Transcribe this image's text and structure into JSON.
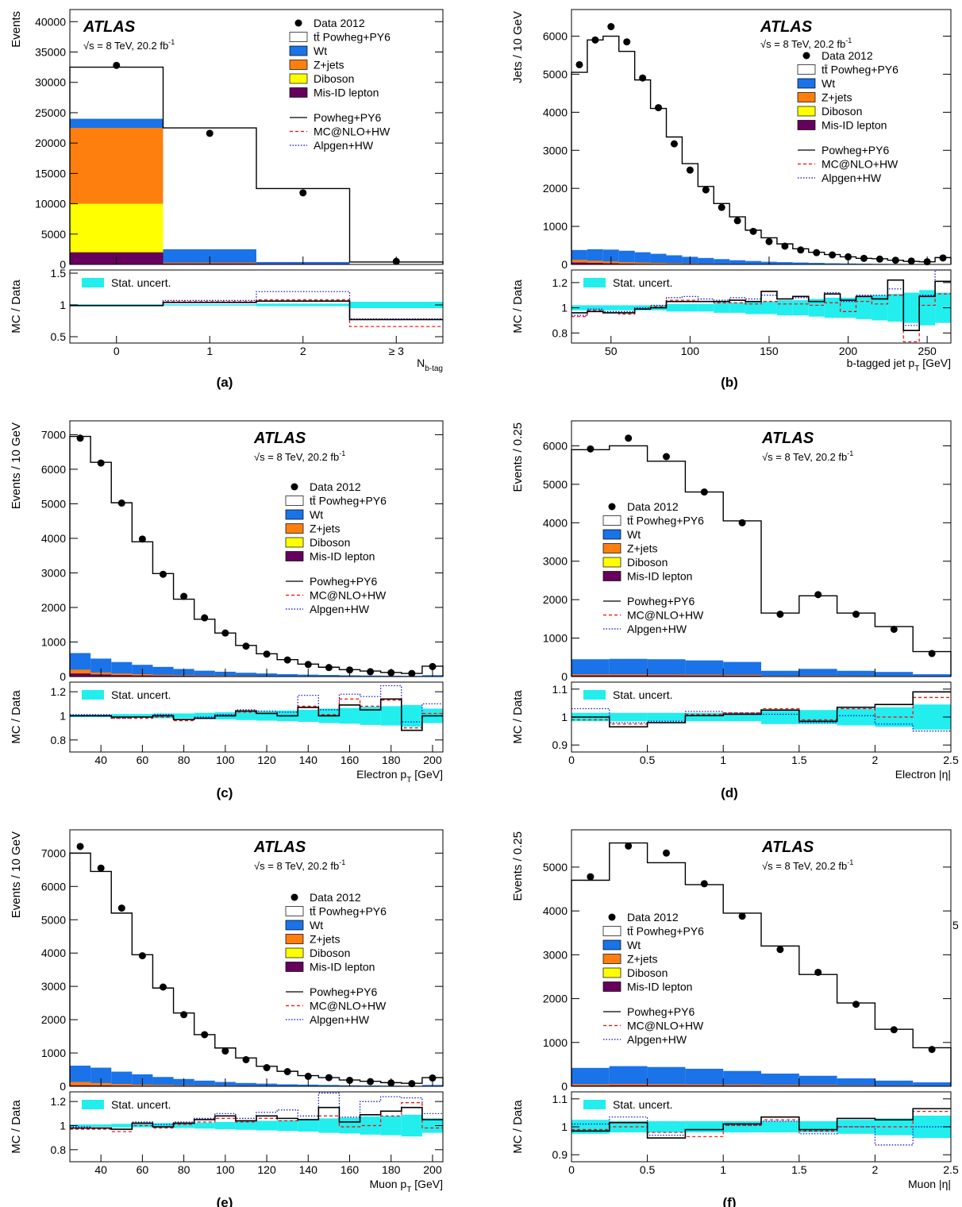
{
  "figure": {
    "page_number": "5",
    "common": {
      "atlas_label": "ATLAS",
      "energy_label_prefix": "√s = 8 TeV, 20.2 fb",
      "energy_label_sup": "-1",
      "ratio_ylabel": "MC / Data",
      "legend": {
        "data": "Data 2012",
        "ttbar": "tt̄ Powheg+PY6",
        "wt": "Wt",
        "zjets": "Z+jets",
        "diboson": "Diboson",
        "misid": "Mis-ID lepton",
        "powheg": "Powheg+PY6",
        "mcatnlo": "MC@NLO+HW",
        "alpgen": "Alpgen+HW",
        "stat": "Stat. uncert."
      },
      "colors": {
        "wt": "#1a73e8",
        "zjets": "#ff7f0e",
        "diboson": "#ffff00",
        "misid": "#66005c",
        "stat": "#22eeee",
        "mcatnlo": "#ff0000",
        "alpgen": "#0000cc"
      }
    }
  },
  "chart_data": [
    {
      "panel": "(a)",
      "type": "bar",
      "ylabel": "Events",
      "xlabel": "N_b-tag",
      "xticks": [
        "0",
        "1",
        "2",
        "≥ 3"
      ],
      "bins": [
        -0.5,
        0.5,
        1.5,
        2.5,
        3.5
      ],
      "ylim": [
        0,
        42000
      ],
      "yticks": [
        0,
        5000,
        10000,
        15000,
        20000,
        25000,
        30000,
        35000,
        40000
      ],
      "data": [
        32800,
        21600,
        11800,
        500
      ],
      "powheg_total": [
        32500,
        22500,
        12500,
        400
      ],
      "bkg_wt": [
        24000,
        2500,
        400,
        50
      ],
      "bkg_zjets": [
        22500,
        300,
        100,
        10
      ],
      "bkg_diboson": [
        10000,
        100,
        50,
        5
      ],
      "bkg_misid": [
        2000,
        150,
        100,
        10
      ],
      "ratio_ylim": [
        0.4,
        1.55
      ],
      "ratio_yticks": [
        0.5,
        1,
        1.5
      ],
      "ratio_powheg": [
        0.99,
        1.04,
        1.06,
        0.77
      ],
      "ratio_mcatnlo": [
        0.99,
        1.05,
        1.08,
        0.66
      ],
      "ratio_alpgen": [
        0.99,
        1.07,
        1.21,
        0.78
      ],
      "ratio_stat": [
        0.01,
        0.01,
        0.02,
        0.05
      ]
    },
    {
      "panel": "(b)",
      "type": "bar",
      "ylabel": "Jets / 10 GeV",
      "xlabel": "b-tagged jet p_T [GeV]",
      "bins": [
        25,
        35,
        45,
        55,
        65,
        75,
        85,
        95,
        105,
        115,
        125,
        135,
        145,
        155,
        165,
        175,
        185,
        195,
        205,
        215,
        225,
        235,
        245,
        255,
        265
      ],
      "xlim": [
        25,
        265
      ],
      "xticks": [
        50,
        100,
        150,
        200,
        250
      ],
      "ylim": [
        0,
        6700
      ],
      "yticks": [
        0,
        1000,
        2000,
        3000,
        4000,
        5000,
        6000
      ],
      "data": [
        5250,
        5900,
        6250,
        5850,
        4900,
        4120,
        3170,
        2480,
        1960,
        1500,
        1150,
        870,
        600,
        480,
        380,
        310,
        250,
        200,
        160,
        140,
        110,
        90,
        70,
        170
      ],
      "powheg_total": [
        5050,
        5900,
        6000,
        5600,
        4850,
        4100,
        3350,
        2650,
        2050,
        1600,
        1250,
        900,
        700,
        540,
        410,
        320,
        260,
        200,
        160,
        150,
        110,
        80,
        70,
        180
      ],
      "bkg_wt": [
        380,
        400,
        390,
        360,
        320,
        280,
        240,
        200,
        170,
        140,
        110,
        90,
        70,
        60,
        50,
        40,
        30,
        25,
        20,
        15,
        12,
        10,
        8,
        10
      ],
      "bkg_zjets": [
        120,
        100,
        80,
        60,
        50,
        40,
        30,
        25,
        20,
        15,
        12,
        10,
        8,
        6,
        5,
        4,
        3,
        2,
        2,
        2,
        1,
        1,
        1,
        1
      ],
      "bkg_diboson": [
        20,
        18,
        15,
        12,
        10,
        8,
        6,
        5,
        4,
        3,
        3,
        2,
        2,
        1,
        1,
        1,
        1,
        1,
        1,
        1,
        1,
        1,
        1,
        1
      ],
      "bkg_misid": [
        50,
        40,
        30,
        20,
        15,
        12,
        10,
        8,
        6,
        5,
        4,
        3,
        2,
        2,
        2,
        1,
        1,
        1,
        1,
        1,
        1,
        1,
        1,
        1
      ],
      "ratio_ylim": [
        0.72,
        1.3
      ],
      "ratio_yticks": [
        0.8,
        1,
        1.2
      ],
      "ratio_powheg": [
        0.96,
        0.97,
        0.96,
        0.96,
        0.99,
        1.0,
        1.05,
        1.05,
        1.05,
        1.05,
        1.06,
        1.05,
        1.13,
        1.07,
        1.09,
        1.05,
        1.11,
        1.06,
        1.09,
        1.07,
        1.22,
        0.82,
        1.09,
        1.21
      ],
      "ratio_mcatnlo": [
        0.93,
        0.98,
        0.96,
        0.95,
        0.99,
        1.01,
        1.06,
        1.06,
        1.05,
        1.04,
        1.04,
        1.03,
        1.05,
        1.03,
        1.03,
        1.02,
        1.04,
        0.97,
        1.05,
        1.03,
        1.1,
        0.73,
        1.02,
        1.11
      ],
      "ratio_alpgen": [
        0.94,
        0.99,
        0.97,
        0.97,
        1.0,
        1.02,
        1.08,
        1.09,
        1.07,
        1.06,
        1.08,
        1.07,
        1.1,
        1.07,
        1.08,
        1.05,
        1.12,
        1.05,
        1.1,
        1.1,
        1.15,
        0.86,
        1.1,
        1.3
      ],
      "ratio_stat": [
        0.02,
        0.02,
        0.02,
        0.02,
        0.02,
        0.02,
        0.03,
        0.03,
        0.03,
        0.04,
        0.04,
        0.05,
        0.05,
        0.06,
        0.06,
        0.07,
        0.08,
        0.08,
        0.09,
        0.1,
        0.11,
        0.12,
        0.14,
        0.12
      ]
    },
    {
      "panel": "(c)",
      "type": "bar",
      "ylabel": "Events / 10 GeV",
      "xlabel": "Electron p_T [GeV]",
      "bins": [
        25,
        35,
        45,
        55,
        65,
        75,
        85,
        95,
        105,
        115,
        125,
        135,
        145,
        155,
        165,
        175,
        185,
        195,
        205
      ],
      "xlim": [
        25,
        205
      ],
      "xticks": [
        40,
        60,
        80,
        100,
        120,
        140,
        160,
        180,
        200
      ],
      "ylim": [
        0,
        7400
      ],
      "yticks": [
        0,
        1000,
        2000,
        3000,
        4000,
        5000,
        6000,
        7000
      ],
      "data": [
        6900,
        6180,
        5020,
        3980,
        2960,
        2320,
        1700,
        1260,
        880,
        650,
        480,
        350,
        260,
        190,
        140,
        110,
        90,
        290
      ],
      "powheg_total": [
        6950,
        6200,
        5030,
        3900,
        2980,
        2240,
        1660,
        1260,
        900,
        660,
        490,
        360,
        270,
        200,
        160,
        120,
        90,
        300
      ],
      "bkg_wt": [
        680,
        520,
        420,
        340,
        280,
        220,
        170,
        140,
        110,
        90,
        70,
        55,
        45,
        35,
        30,
        25,
        20,
        40
      ],
      "bkg_zjets": [
        200,
        120,
        90,
        70,
        50,
        40,
        30,
        25,
        20,
        15,
        12,
        10,
        8,
        6,
        5,
        4,
        3,
        6
      ],
      "bkg_diboson": [
        20,
        15,
        12,
        10,
        8,
        6,
        5,
        4,
        3,
        3,
        2,
        2,
        2,
        1,
        1,
        1,
        1,
        2
      ],
      "bkg_misid": [
        90,
        60,
        40,
        30,
        25,
        20,
        15,
        12,
        10,
        8,
        6,
        5,
        4,
        3,
        3,
        2,
        2,
        4
      ],
      "ratio_ylim": [
        0.7,
        1.28
      ],
      "ratio_yticks": [
        0.8,
        1,
        1.2
      ],
      "ratio_powheg": [
        1.0,
        1.0,
        0.99,
        0.99,
        1.0,
        0.97,
        0.98,
        1.0,
        1.04,
        1.02,
        1.0,
        1.07,
        1.0,
        1.09,
        1.05,
        1.14,
        0.88,
        1.0
      ],
      "ratio_mcatnlo": [
        1.0,
        1.0,
        0.98,
        0.98,
        0.99,
        0.96,
        0.98,
        1.0,
        1.03,
        1.02,
        1.0,
        1.08,
        1.01,
        1.14,
        1.08,
        1.13,
        0.9,
        1.02
      ],
      "ratio_alpgen": [
        1.01,
        1.01,
        0.98,
        0.99,
        1.01,
        0.97,
        0.99,
        1.01,
        1.05,
        1.04,
        1.03,
        1.17,
        1.05,
        1.18,
        1.16,
        1.25,
        0.95,
        1.1
      ],
      "ratio_stat": [
        0.01,
        0.01,
        0.015,
        0.015,
        0.02,
        0.02,
        0.025,
        0.03,
        0.035,
        0.04,
        0.045,
        0.05,
        0.06,
        0.065,
        0.075,
        0.08,
        0.09,
        0.06
      ]
    },
    {
      "panel": "(d)",
      "type": "bar",
      "ylabel": "Events / 0.25",
      "xlabel": "Electron |η|",
      "bins": [
        0,
        0.25,
        0.5,
        0.75,
        1.0,
        1.25,
        1.5,
        1.75,
        2.0,
        2.25,
        2.5
      ],
      "xlim": [
        0,
        2.5
      ],
      "xticks": [
        0,
        0.5,
        1,
        1.5,
        2,
        2.5
      ],
      "ylim": [
        0,
        6650
      ],
      "yticks": [
        0,
        1000,
        2000,
        3000,
        4000,
        5000,
        6000
      ],
      "data": [
        5920,
        6200,
        5720,
        4800,
        4000,
        1620,
        2130,
        1620,
        1230,
        600
      ],
      "powheg_total": [
        5900,
        6000,
        5600,
        4800,
        4050,
        1650,
        2100,
        1650,
        1300,
        650
      ],
      "bkg_wt": [
        450,
        460,
        450,
        420,
        380,
        150,
        200,
        150,
        120,
        60
      ],
      "bkg_zjets": [
        60,
        60,
        55,
        50,
        45,
        20,
        25,
        20,
        15,
        8
      ],
      "bkg_diboson": [
        8,
        8,
        7,
        6,
        5,
        2,
        3,
        2,
        2,
        1
      ],
      "bkg_misid": [
        30,
        30,
        28,
        25,
        22,
        10,
        12,
        10,
        8,
        5
      ],
      "ratio_ylim": [
        0.875,
        1.125
      ],
      "ratio_yticks": [
        0.9,
        1,
        1.1
      ],
      "ratio_powheg": [
        1.0,
        0.965,
        0.98,
        1.005,
        1.01,
        1.025,
        0.985,
        1.035,
        1.045,
        1.09
      ],
      "ratio_mcatnlo": [
        0.99,
        0.975,
        0.98,
        1.01,
        1.015,
        1.03,
        0.99,
        1.03,
        1.0,
        1.07
      ],
      "ratio_alpgen": [
        1.03,
        0.98,
        0.985,
        1.02,
        1.015,
        1.01,
        0.98,
        1.005,
        0.975,
        0.95
      ],
      "ratio_stat": [
        0.015,
        0.015,
        0.015,
        0.015,
        0.015,
        0.025,
        0.025,
        0.03,
        0.035,
        0.045
      ]
    },
    {
      "panel": "(e)",
      "type": "bar",
      "ylabel": "Events / 10 GeV",
      "xlabel": "Muon p_T [GeV]",
      "bins": [
        25,
        35,
        45,
        55,
        65,
        75,
        85,
        95,
        105,
        115,
        125,
        135,
        145,
        155,
        165,
        175,
        185,
        195,
        205
      ],
      "xlim": [
        25,
        205
      ],
      "xticks": [
        40,
        60,
        80,
        100,
        120,
        140,
        160,
        180,
        200
      ],
      "ylim": [
        0,
        7700
      ],
      "yticks": [
        0,
        1000,
        2000,
        3000,
        4000,
        5000,
        6000,
        7000
      ],
      "data": [
        7200,
        6550,
        5350,
        3920,
        2980,
        2150,
        1550,
        1060,
        800,
        560,
        440,
        300,
        260,
        180,
        140,
        100,
        80,
        250
      ],
      "powheg_total": [
        7000,
        6450,
        5200,
        3950,
        2950,
        2200,
        1550,
        1150,
        850,
        600,
        450,
        320,
        260,
        190,
        150,
        110,
        90,
        260
      ],
      "bkg_wt": [
        620,
        560,
        440,
        360,
        280,
        220,
        170,
        130,
        100,
        80,
        60,
        50,
        40,
        30,
        25,
        20,
        15,
        40
      ],
      "bkg_zjets": [
        130,
        100,
        70,
        50,
        40,
        30,
        25,
        20,
        15,
        12,
        10,
        8,
        6,
        5,
        4,
        3,
        3,
        6
      ],
      "bkg_diboson": [
        15,
        12,
        10,
        8,
        6,
        5,
        4,
        3,
        3,
        2,
        2,
        1,
        1,
        1,
        1,
        1,
        1,
        2
      ],
      "bkg_misid": [
        30,
        25,
        20,
        15,
        12,
        10,
        8,
        6,
        5,
        4,
        3,
        3,
        2,
        2,
        2,
        1,
        1,
        3
      ],
      "ratio_ylim": [
        0.7,
        1.28
      ],
      "ratio_yticks": [
        0.8,
        1,
        1.2
      ],
      "ratio_powheg": [
        0.98,
        0.98,
        0.97,
        1.02,
        0.99,
        1.02,
        1.05,
        1.08,
        1.04,
        1.08,
        1.06,
        1.05,
        1.15,
        1.03,
        1.09,
        1.12,
        1.15,
        1.05
      ],
      "ratio_mcatnlo": [
        0.97,
        0.97,
        0.95,
        1.0,
        0.98,
        1.01,
        1.03,
        1.06,
        1.03,
        1.06,
        1.04,
        1.05,
        1.08,
        0.99,
        1.0,
        1.08,
        1.19,
        0.98
      ],
      "ratio_alpgen": [
        0.99,
        0.98,
        0.97,
        1.03,
        1.01,
        1.03,
        1.06,
        1.1,
        1.06,
        1.11,
        1.13,
        1.08,
        1.27,
        1.07,
        1.2,
        1.24,
        1.23,
        1.1
      ],
      "ratio_stat": [
        0.01,
        0.01,
        0.015,
        0.015,
        0.02,
        0.02,
        0.025,
        0.03,
        0.035,
        0.04,
        0.045,
        0.05,
        0.06,
        0.065,
        0.075,
        0.08,
        0.09,
        0.06
      ]
    },
    {
      "panel": "(f)",
      "type": "bar",
      "ylabel": "Events / 0.25",
      "xlabel": "Muon |η|",
      "bins": [
        0,
        0.25,
        0.5,
        0.75,
        1.0,
        1.25,
        1.5,
        1.75,
        2.0,
        2.25,
        2.5
      ],
      "xlim": [
        0,
        2.5
      ],
      "xticks": [
        0,
        0.5,
        1,
        1.5,
        2,
        2.5
      ],
      "ylim": [
        0,
        5850
      ],
      "yticks": [
        0,
        1000,
        2000,
        3000,
        4000,
        5000
      ],
      "data": [
        4780,
        5480,
        5320,
        4620,
        3880,
        3120,
        2600,
        1870,
        1290,
        840
      ],
      "powheg_total": [
        4700,
        5550,
        5100,
        4600,
        3950,
        3200,
        2550,
        1900,
        1300,
        880
      ],
      "bkg_wt": [
        420,
        460,
        440,
        400,
        350,
        290,
        240,
        180,
        130,
        90
      ],
      "bkg_zjets": [
        50,
        55,
        50,
        45,
        40,
        35,
        30,
        20,
        15,
        10
      ],
      "bkg_diboson": [
        6,
        7,
        6,
        5,
        5,
        4,
        3,
        2,
        2,
        1
      ],
      "bkg_misid": [
        20,
        25,
        22,
        20,
        18,
        15,
        12,
        9,
        6,
        4
      ],
      "ratio_ylim": [
        0.875,
        1.125
      ],
      "ratio_yticks": [
        0.9,
        1,
        1.1
      ],
      "ratio_powheg": [
        0.985,
        1.015,
        0.96,
        0.99,
        1.01,
        1.035,
        0.99,
        1.03,
        1.025,
        1.065
      ],
      "ratio_mcatnlo": [
        0.99,
        1.0,
        0.98,
        0.965,
        1.005,
        1.025,
        0.985,
        1.0,
        1.0,
        1.055
      ],
      "ratio_alpgen": [
        1.01,
        1.035,
        0.97,
        0.99,
        1.005,
        1.02,
        0.975,
        1.0,
        0.935,
        1.0
      ],
      "ratio_stat": [
        0.025,
        0.02,
        0.02,
        0.02,
        0.02,
        0.02,
        0.02,
        0.025,
        0.03,
        0.04
      ]
    }
  ]
}
